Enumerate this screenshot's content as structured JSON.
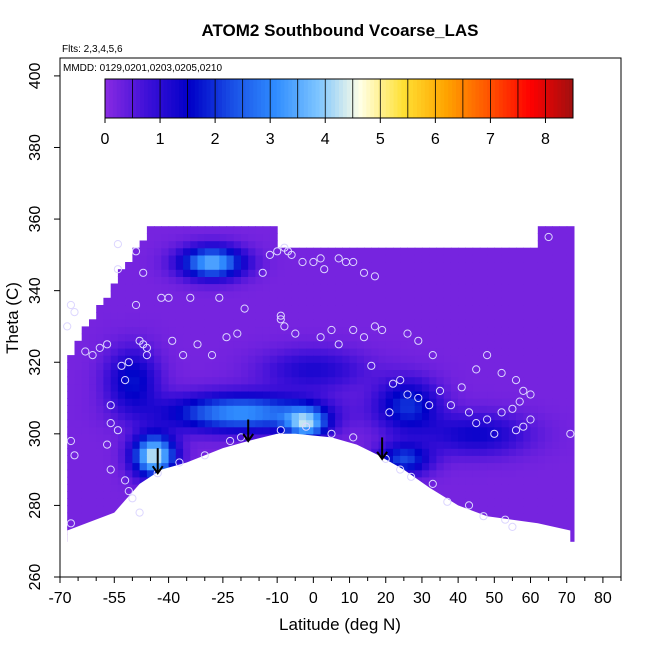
{
  "chart_data": {
    "type": "heatmap",
    "title": "ATOM2 Southbound Vcoarse_LAS",
    "subtitle_flights": "Flts: 2,3,4,5,6",
    "subtitle_dates": "MMDD: 0129,0201,0203,0205,0210",
    "xlabel": "Latitude (deg N)",
    "ylabel": "Theta (C)",
    "xlim": [
      -70,
      85
    ],
    "ylim": [
      260,
      405
    ],
    "x_ticks": [
      -70,
      -55,
      -40,
      -25,
      -10,
      0,
      10,
      20,
      30,
      40,
      50,
      60,
      70,
      80
    ],
    "x_tick_labels": [
      "-70",
      "-55",
      "-40",
      "-25",
      "-10",
      "0",
      "10",
      "20",
      "30",
      "40",
      "50",
      "60",
      "70",
      "80"
    ],
    "y_ticks": [
      260,
      280,
      300,
      320,
      340,
      360,
      380,
      400
    ],
    "y_tick_labels": [
      "260",
      "280",
      "300",
      "320",
      "340",
      "360",
      "380",
      "400"
    ],
    "colorbar": {
      "min": 0,
      "max": 8.5,
      "ticks": [
        0,
        1,
        2,
        3,
        4,
        5,
        6,
        7,
        8
      ],
      "tick_labels": [
        "0",
        "1",
        "2",
        "3",
        "4",
        "5",
        "6",
        "7",
        "8"
      ],
      "colors": [
        "#8a2be2",
        "#3d10d8",
        "#0000c8",
        "#1a50e6",
        "#2f8cff",
        "#7cc4ff",
        "#ffffe6",
        "#ffe135",
        "#ffa500",
        "#ff5500",
        "#ff0000",
        "#a01010"
      ]
    },
    "field": {
      "background_value": 0.2,
      "domain_top_theta": 357,
      "domain_lat_range": [
        -68,
        71
      ],
      "ground_boundary": [
        {
          "lat": -68,
          "theta": 273
        },
        {
          "lat": -55,
          "theta": 278
        },
        {
          "lat": -48,
          "theta": 286
        },
        {
          "lat": -42,
          "theta": 290
        },
        {
          "lat": -35,
          "theta": 292
        },
        {
          "lat": -25,
          "theta": 296
        },
        {
          "lat": -18,
          "theta": 298
        },
        {
          "lat": -10,
          "theta": 300
        },
        {
          "lat": -5,
          "theta": 300
        },
        {
          "lat": 5,
          "theta": 299
        },
        {
          "lat": 12,
          "theta": 297
        },
        {
          "lat": 18,
          "theta": 294
        },
        {
          "lat": 25,
          "theta": 290
        },
        {
          "lat": 32,
          "theta": 285
        },
        {
          "lat": 40,
          "theta": 280
        },
        {
          "lat": 48,
          "theta": 277
        },
        {
          "lat": 55,
          "theta": 276
        },
        {
          "lat": 62,
          "theta": 275
        },
        {
          "lat": 71,
          "theta": 273
        }
      ],
      "features": [
        {
          "lat": -20,
          "theta": 306,
          "sigma_lat": 14,
          "sigma_theta": 3.5,
          "value": 3.0
        },
        {
          "lat": -44,
          "theta": 294,
          "sigma_lat": 4,
          "sigma_theta": 4,
          "value": 4.2
        },
        {
          "lat": -2,
          "theta": 303,
          "sigma_lat": 4,
          "sigma_theta": 3,
          "value": 3.2
        },
        {
          "lat": -28,
          "theta": 348,
          "sigma_lat": 6,
          "sigma_theta": 3,
          "value": 3.4
        },
        {
          "lat": 26,
          "theta": 308,
          "sigma_lat": 6,
          "sigma_theta": 5,
          "value": 1.8
        },
        {
          "lat": 25,
          "theta": 293,
          "sigma_lat": 5,
          "sigma_theta": 3,
          "value": 2.0
        },
        {
          "lat": 45,
          "theta": 300,
          "sigma_lat": 10,
          "sigma_theta": 4,
          "value": 1.2
        },
        {
          "lat": -50,
          "theta": 315,
          "sigma_lat": 5,
          "sigma_theta": 6,
          "value": 1.5
        },
        {
          "lat": 0,
          "theta": 318,
          "sigma_lat": 10,
          "sigma_theta": 4,
          "value": 1.0
        }
      ]
    },
    "sample_points": [
      {
        "lat": -68,
        "theta": 330
      },
      {
        "lat": -67,
        "theta": 336
      },
      {
        "lat": -66,
        "theta": 334
      },
      {
        "lat": -67,
        "theta": 298
      },
      {
        "lat": -66,
        "theta": 294
      },
      {
        "lat": -67,
        "theta": 275
      },
      {
        "lat": -63,
        "theta": 323
      },
      {
        "lat": -61,
        "theta": 322
      },
      {
        "lat": -59,
        "theta": 324
      },
      {
        "lat": -57,
        "theta": 325
      },
      {
        "lat": -54,
        "theta": 353
      },
      {
        "lat": -54,
        "theta": 346
      },
      {
        "lat": -56,
        "theta": 308
      },
      {
        "lat": -56,
        "theta": 303
      },
      {
        "lat": -54,
        "theta": 301
      },
      {
        "lat": -57,
        "theta": 297
      },
      {
        "lat": -56,
        "theta": 290
      },
      {
        "lat": -53,
        "theta": 319
      },
      {
        "lat": -52,
        "theta": 315
      },
      {
        "lat": -51,
        "theta": 320
      },
      {
        "lat": -49,
        "theta": 336
      },
      {
        "lat": -48,
        "theta": 326
      },
      {
        "lat": -47,
        "theta": 325
      },
      {
        "lat": -46,
        "theta": 322
      },
      {
        "lat": -46,
        "theta": 324
      },
      {
        "lat": -49,
        "theta": 351
      },
      {
        "lat": -47,
        "theta": 345
      },
      {
        "lat": -42,
        "theta": 338
      },
      {
        "lat": -40,
        "theta": 338
      },
      {
        "lat": -39,
        "theta": 326
      },
      {
        "lat": -36,
        "theta": 322
      },
      {
        "lat": -34,
        "theta": 338
      },
      {
        "lat": -32,
        "theta": 325
      },
      {
        "lat": -28,
        "theta": 322
      },
      {
        "lat": -26,
        "theta": 338
      },
      {
        "lat": -24,
        "theta": 327
      },
      {
        "lat": -21,
        "theta": 328
      },
      {
        "lat": -19,
        "theta": 335
      },
      {
        "lat": -14,
        "theta": 345
      },
      {
        "lat": -10,
        "theta": 351
      },
      {
        "lat": -8,
        "theta": 352
      },
      {
        "lat": -7,
        "theta": 351
      },
      {
        "lat": -6,
        "theta": 350
      },
      {
        "lat": -9,
        "theta": 332
      },
      {
        "lat": -9,
        "theta": 333
      },
      {
        "lat": -8,
        "theta": 330
      },
      {
        "lat": -5,
        "theta": 328
      },
      {
        "lat": -3,
        "theta": 348
      },
      {
        "lat": 0,
        "theta": 348
      },
      {
        "lat": 2,
        "theta": 349
      },
      {
        "lat": 3,
        "theta": 346
      },
      {
        "lat": 7,
        "theta": 349
      },
      {
        "lat": 9,
        "theta": 348
      },
      {
        "lat": 11,
        "theta": 348
      },
      {
        "lat": 14,
        "theta": 345
      },
      {
        "lat": 17,
        "theta": 344
      },
      {
        "lat": 2,
        "theta": 327
      },
      {
        "lat": 5,
        "theta": 329
      },
      {
        "lat": 7,
        "theta": 325
      },
      {
        "lat": 11,
        "theta": 329
      },
      {
        "lat": 14,
        "theta": 327
      },
      {
        "lat": 17,
        "theta": 330
      },
      {
        "lat": 19,
        "theta": 329
      },
      {
        "lat": 16,
        "theta": 319
      },
      {
        "lat": 22,
        "theta": 314
      },
      {
        "lat": 24,
        "theta": 315
      },
      {
        "lat": 26,
        "theta": 328
      },
      {
        "lat": 29,
        "theta": 326
      },
      {
        "lat": 33,
        "theta": 322
      },
      {
        "lat": 35,
        "theta": 312
      },
      {
        "lat": 38,
        "theta": 308
      },
      {
        "lat": 41,
        "theta": 313
      },
      {
        "lat": 45,
        "theta": 318
      },
      {
        "lat": 48,
        "theta": 322
      },
      {
        "lat": 52,
        "theta": 317
      },
      {
        "lat": 56,
        "theta": 315
      },
      {
        "lat": 58,
        "theta": 312
      },
      {
        "lat": 43,
        "theta": 306
      },
      {
        "lat": 45,
        "theta": 303
      },
      {
        "lat": 48,
        "theta": 304
      },
      {
        "lat": 50,
        "theta": 300
      },
      {
        "lat": 52,
        "theta": 306
      },
      {
        "lat": 56,
        "theta": 301
      },
      {
        "lat": 58,
        "theta": 302
      },
      {
        "lat": 60,
        "theta": 304
      },
      {
        "lat": 55,
        "theta": 307
      },
      {
        "lat": 57,
        "theta": 309
      },
      {
        "lat": 60,
        "theta": 311
      },
      {
        "lat": 21,
        "theta": 306
      },
      {
        "lat": 26,
        "theta": 311
      },
      {
        "lat": 29,
        "theta": 310
      },
      {
        "lat": 32,
        "theta": 308
      },
      {
        "lat": -30,
        "theta": 294
      },
      {
        "lat": -23,
        "theta": 298
      },
      {
        "lat": -9,
        "theta": 301
      },
      {
        "lat": -2,
        "theta": 302
      },
      {
        "lat": 5,
        "theta": 300
      },
      {
        "lat": 11,
        "theta": 299
      },
      {
        "lat": 20,
        "theta": 293
      },
      {
        "lat": 24,
        "theta": 290
      },
      {
        "lat": 27,
        "theta": 288
      },
      {
        "lat": 33,
        "theta": 286
      },
      {
        "lat": 37,
        "theta": 281
      },
      {
        "lat": 43,
        "theta": 280
      },
      {
        "lat": 47,
        "theta": 277
      },
      {
        "lat": 53,
        "theta": 276
      },
      {
        "lat": 55,
        "theta": 274
      },
      {
        "lat": -52,
        "theta": 287
      },
      {
        "lat": -51,
        "theta": 284
      },
      {
        "lat": -50,
        "theta": 282
      },
      {
        "lat": -48,
        "theta": 278
      },
      {
        "lat": -37,
        "theta": 292
      },
      {
        "lat": -43,
        "theta": 289
      },
      {
        "lat": -20,
        "theta": 299
      },
      {
        "lat": 65,
        "theta": 355
      },
      {
        "lat": 71,
        "theta": 300
      },
      {
        "lat": -12,
        "theta": 350
      }
    ],
    "arrows": [
      {
        "lat": -43,
        "theta_from": 296,
        "theta_to": 289
      },
      {
        "lat": -18,
        "theta_from": 304,
        "theta_to": 298
      },
      {
        "lat": 19,
        "theta_from": 299,
        "theta_to": 293
      }
    ]
  }
}
